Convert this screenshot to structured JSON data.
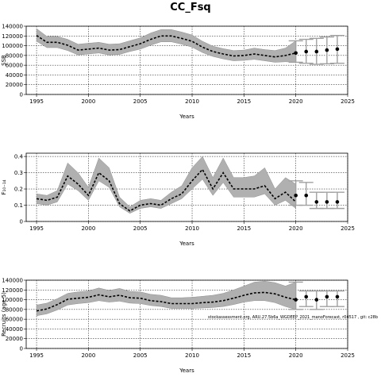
{
  "figure": {
    "title": "CC_Fsq",
    "annotation": "stockassessment.org, ARU.27.5b6a_WGDEEP_2021_manoForecast, r04517 , git: c28b"
  },
  "chart_data": [
    {
      "type": "line",
      "xlabel": "Years",
      "ylabel": "SSB",
      "xlim": [
        1994,
        2025
      ],
      "ylim": [
        0,
        140000
      ],
      "xticks": [
        1995,
        2000,
        2005,
        2010,
        2015,
        2020,
        2025
      ],
      "yticks": [
        0,
        20000,
        40000,
        60000,
        80000,
        100000,
        120000,
        140000
      ],
      "grid": true,
      "series": [
        {
          "kind": "estimate",
          "x": [
            1995,
            1996,
            1997,
            1998,
            1999,
            2000,
            2001,
            2002,
            2003,
            2004,
            2005,
            2006,
            2007,
            2008,
            2009,
            2010,
            2011,
            2012,
            2013,
            2014,
            2015,
            2016,
            2017,
            2018,
            2019,
            2020
          ],
          "values": [
            121000,
            107000,
            107000,
            101000,
            91000,
            93000,
            95000,
            91000,
            92000,
            98000,
            104000,
            113000,
            120000,
            120000,
            115000,
            109000,
            97000,
            88000,
            83000,
            79000,
            80000,
            83000,
            80000,
            77000,
            80000,
            85000
          ],
          "lower": [
            109000,
            96000,
            96000,
            90000,
            81000,
            83000,
            85000,
            81000,
            82000,
            88000,
            93000,
            101000,
            108000,
            108000,
            103000,
            97000,
            86000,
            78000,
            73000,
            69000,
            70000,
            72000,
            69000,
            66000,
            67000,
            66000
          ],
          "upper": [
            135000,
            119000,
            119000,
            113000,
            103000,
            105000,
            107000,
            103000,
            104000,
            110000,
            116000,
            126000,
            133000,
            133000,
            128000,
            122000,
            109000,
            99000,
            94000,
            90000,
            91000,
            95000,
            92000,
            90000,
            95000,
            110000
          ]
        },
        {
          "kind": "forecast",
          "x": [
            2020,
            2021,
            2022,
            2023,
            2024
          ],
          "values": [
            85000,
            88000,
            88000,
            91000,
            93000
          ],
          "lower": [
            66000,
            64000,
            62000,
            63000,
            64000
          ],
          "upper": [
            110000,
            113000,
            115000,
            118000,
            121000
          ]
        }
      ]
    },
    {
      "type": "line",
      "xlabel": "Years",
      "ylabel": "F₁₀₋₁₄",
      "xlim": [
        1994,
        2025
      ],
      "ylim": [
        0,
        0.42
      ],
      "xticks": [
        1995,
        2000,
        2005,
        2010,
        2015,
        2020,
        2025
      ],
      "yticks": [
        0.0,
        0.1,
        0.2,
        0.3,
        0.4
      ],
      "grid": true,
      "series": [
        {
          "kind": "estimate",
          "x": [
            1995,
            1996,
            1997,
            1998,
            1999,
            2000,
            2001,
            2002,
            2003,
            2004,
            2005,
            2006,
            2007,
            2008,
            2009,
            2010,
            2011,
            2012,
            2013,
            2014,
            2015,
            2016,
            2017,
            2018,
            2019,
            2020
          ],
          "values": [
            0.14,
            0.13,
            0.15,
            0.28,
            0.23,
            0.16,
            0.3,
            0.25,
            0.11,
            0.065,
            0.1,
            0.11,
            0.1,
            0.14,
            0.17,
            0.25,
            0.32,
            0.2,
            0.3,
            0.2,
            0.2,
            0.2,
            0.22,
            0.14,
            0.18,
            0.12
          ],
          "lower": [
            0.11,
            0.1,
            0.12,
            0.23,
            0.19,
            0.13,
            0.25,
            0.21,
            0.09,
            0.05,
            0.08,
            0.09,
            0.08,
            0.11,
            0.14,
            0.2,
            0.26,
            0.16,
            0.24,
            0.15,
            0.15,
            0.15,
            0.17,
            0.1,
            0.13,
            0.08
          ],
          "upper": [
            0.17,
            0.16,
            0.19,
            0.36,
            0.3,
            0.21,
            0.39,
            0.33,
            0.15,
            0.09,
            0.13,
            0.14,
            0.13,
            0.18,
            0.22,
            0.33,
            0.4,
            0.27,
            0.39,
            0.27,
            0.27,
            0.28,
            0.33,
            0.2,
            0.27,
            0.23
          ]
        },
        {
          "kind": "forecast",
          "x": [
            2020,
            2021,
            2022,
            2023,
            2024
          ],
          "values": [
            0.16,
            0.16,
            0.12,
            0.12,
            0.12
          ],
          "lower": [
            0.1,
            0.1,
            0.08,
            0.08,
            0.08
          ],
          "upper": [
            0.25,
            0.24,
            0.18,
            0.18,
            0.18
          ]
        }
      ]
    },
    {
      "type": "line",
      "xlabel": "Years",
      "ylabel": "Recruits (age 5)",
      "xlim": [
        1994,
        2025
      ],
      "ylim": [
        0,
        140000
      ],
      "xticks": [
        1995,
        2000,
        2005,
        2010,
        2015,
        2020,
        2025
      ],
      "yticks": [
        0,
        20000,
        40000,
        60000,
        80000,
        100000,
        120000,
        140000
      ],
      "grid": true,
      "series": [
        {
          "kind": "estimate",
          "x": [
            1995,
            1996,
            1997,
            1998,
            1999,
            2000,
            2001,
            2002,
            2003,
            2004,
            2005,
            2006,
            2007,
            2008,
            2009,
            2010,
            2011,
            2012,
            2013,
            2014,
            2015,
            2016,
            2017,
            2018,
            2019,
            2020
          ],
          "values": [
            77000,
            81000,
            90000,
            101000,
            103000,
            105000,
            110000,
            106000,
            109000,
            104000,
            103000,
            98000,
            96000,
            92000,
            92000,
            92000,
            94000,
            95000,
            98000,
            103000,
            109000,
            114000,
            115000,
            112000,
            105000,
            100000
          ],
          "lower": [
            67000,
            71000,
            79000,
            89000,
            92000,
            94000,
            98000,
            95000,
            97000,
            93000,
            92000,
            88000,
            86000,
            82000,
            82000,
            82000,
            83000,
            84000,
            86000,
            90000,
            95000,
            98000,
            98000,
            94000,
            86000,
            80000
          ],
          "upper": [
            89000,
            93000,
            102000,
            113000,
            116000,
            118000,
            124000,
            119000,
            123000,
            117000,
            116000,
            111000,
            109000,
            104000,
            104000,
            105000,
            107000,
            109000,
            113000,
            120000,
            128000,
            136000,
            138000,
            135000,
            128000,
            136000
          ]
        },
        {
          "kind": "forecast",
          "x": [
            2020,
            2021,
            2022,
            2023,
            2024
          ],
          "values": [
            100000,
            106000,
            100000,
            106000,
            106000
          ],
          "lower": [
            80000,
            86000,
            80000,
            86000,
            86000
          ],
          "upper": [
            136000,
            118000,
            118000,
            118000,
            118000
          ]
        }
      ]
    }
  ]
}
